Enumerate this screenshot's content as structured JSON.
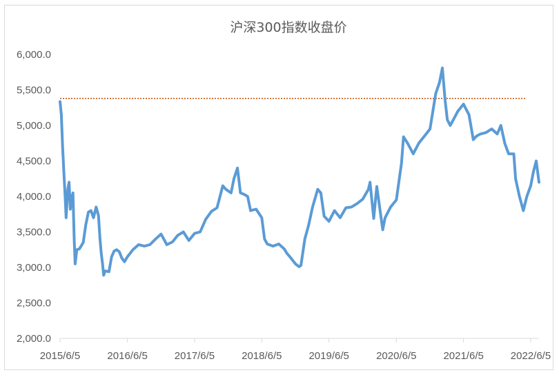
{
  "chart_data": {
    "type": "line",
    "title": "沪深300指数收盘价",
    "xlabel": "",
    "ylabel": "",
    "ylim": [
      2000,
      6000
    ],
    "y_ticks": [
      "2,000.0",
      "2,500.0",
      "3,000.0",
      "3,500.0",
      "4,000.0",
      "4,500.0",
      "5,000.0",
      "5,500.0",
      "6,000.0"
    ],
    "y_tick_values": [
      2000,
      2500,
      3000,
      3500,
      4000,
      4500,
      5000,
      5500,
      6000
    ],
    "x_ticks": [
      "2015/6/5",
      "2016/6/5",
      "2017/6/5",
      "2018/6/5",
      "2019/6/5",
      "2020/6/5",
      "2021/6/5",
      "2022/6/5"
    ],
    "x_range": [
      "2015-06-05",
      "2022-07-20"
    ],
    "grid": false,
    "legend": "none",
    "series": [
      {
        "color": "#5B9BD5",
        "x": [
          "2015-06-05",
          "2015-06-12",
          "2015-06-19",
          "2015-06-26",
          "2015-07-03",
          "2015-07-08",
          "2015-07-17",
          "2015-07-24",
          "2015-07-31",
          "2015-08-07",
          "2015-08-14",
          "2015-08-21",
          "2015-08-26",
          "2015-09-04",
          "2015-09-18",
          "2015-10-09",
          "2015-10-23",
          "2015-11-06",
          "2015-11-20",
          "2015-12-04",
          "2015-12-18",
          "2015-12-31",
          "2016-01-08",
          "2016-01-15",
          "2016-01-22",
          "2016-01-28",
          "2016-02-05",
          "2016-02-26",
          "2016-03-11",
          "2016-03-25",
          "2016-04-08",
          "2016-04-22",
          "2016-05-06",
          "2016-05-20",
          "2016-06-05",
          "2016-07-05",
          "2016-08-05",
          "2016-09-05",
          "2016-10-05",
          "2016-11-05",
          "2016-12-05",
          "2017-01-05",
          "2017-02-05",
          "2017-03-05",
          "2017-04-05",
          "2017-05-05",
          "2017-06-05",
          "2017-07-05",
          "2017-08-05",
          "2017-09-05",
          "2017-10-05",
          "2017-11-05",
          "2017-11-22",
          "2017-12-20",
          "2018-01-05",
          "2018-01-24",
          "2018-02-09",
          "2018-02-28",
          "2018-03-20",
          "2018-04-05",
          "2018-05-05",
          "2018-06-05",
          "2018-06-20",
          "2018-07-05",
          "2018-08-05",
          "2018-09-05",
          "2018-10-05",
          "2018-10-19",
          "2018-11-05",
          "2018-12-05",
          "2018-12-25",
          "2019-01-04",
          "2019-01-25",
          "2019-02-15",
          "2019-03-08",
          "2019-04-05",
          "2019-04-22",
          "2019-05-10",
          "2019-06-05",
          "2019-07-05",
          "2019-08-05",
          "2019-09-05",
          "2019-10-05",
          "2019-11-05",
          "2019-12-05",
          "2020-01-05",
          "2020-01-14",
          "2020-02-03",
          "2020-02-20",
          "2020-03-23",
          "2020-04-05",
          "2020-05-05",
          "2020-06-05",
          "2020-07-03",
          "2020-07-14",
          "2020-08-05",
          "2020-09-05",
          "2020-10-05",
          "2020-11-05",
          "2020-12-05",
          "2021-01-05",
          "2021-01-25",
          "2021-02-10",
          "2021-02-25",
          "2021-03-09",
          "2021-03-25",
          "2021-04-15",
          "2021-05-05",
          "2021-06-05",
          "2021-07-05",
          "2021-07-28",
          "2021-08-15",
          "2021-09-05",
          "2021-10-05",
          "2021-11-05",
          "2021-12-05",
          "2021-12-25",
          "2022-01-15",
          "2022-02-05",
          "2022-03-05",
          "2022-03-15",
          "2022-04-05",
          "2022-04-26",
          "2022-05-15",
          "2022-06-05",
          "2022-06-20",
          "2022-07-05",
          "2022-07-20"
        ],
        "values": [
          5335,
          5150,
          4700,
          4330,
          3980,
          3700,
          4100,
          4200,
          3820,
          3970,
          4050,
          3400,
          3050,
          3250,
          3260,
          3350,
          3600,
          3780,
          3800,
          3700,
          3850,
          3730,
          3400,
          3200,
          3050,
          2890,
          2950,
          2940,
          3150,
          3230,
          3250,
          3220,
          3130,
          3080,
          3150,
          3250,
          3320,
          3300,
          3320,
          3400,
          3470,
          3320,
          3360,
          3450,
          3500,
          3380,
          3480,
          3500,
          3680,
          3790,
          3840,
          4150,
          4100,
          4050,
          4250,
          4400,
          4050,
          4030,
          4000,
          3800,
          3820,
          3700,
          3400,
          3330,
          3300,
          3330,
          3260,
          3200,
          3150,
          3050,
          3010,
          3030,
          3400,
          3600,
          3850,
          4100,
          4050,
          3720,
          3650,
          3800,
          3700,
          3840,
          3850,
          3900,
          3960,
          4100,
          4200,
          3690,
          4140,
          3530,
          3700,
          3850,
          3950,
          4470,
          4840,
          4750,
          4600,
          4750,
          4850,
          4950,
          5450,
          5600,
          5810,
          5350,
          5080,
          5000,
          5100,
          5200,
          5300,
          5150,
          4800,
          4850,
          4880,
          4900,
          4950,
          4880,
          5000,
          4750,
          4600,
          4600,
          4250,
          4000,
          3800,
          4000,
          4150,
          4350,
          4500,
          4200
        ]
      }
    ],
    "reference_line": {
      "value": 5380,
      "color": "#C55A11",
      "style": "dotted"
    }
  }
}
